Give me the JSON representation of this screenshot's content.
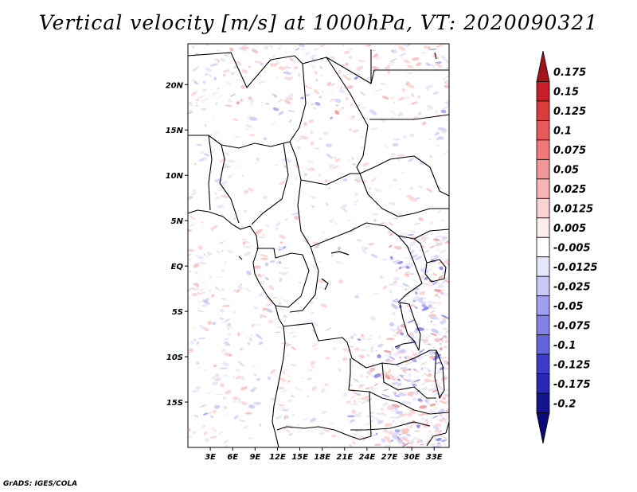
{
  "title": "Vertical velocity [m/s] at 1000hPa, VT: 2020090321",
  "credit": "GrADS: IGES/COLA",
  "map": {
    "lat_ticks": [
      "20N",
      "15N",
      "10N",
      "5N",
      "EQ",
      "5S",
      "10S",
      "15S"
    ],
    "lat_values": [
      20,
      15,
      10,
      5,
      0,
      -5,
      -10,
      -15
    ],
    "lon_ticks": [
      "3E",
      "6E",
      "9E",
      "12E",
      "15E",
      "18E",
      "21E",
      "24E",
      "27E",
      "30E",
      "33E"
    ],
    "lon_values": [
      3,
      6,
      9,
      12,
      15,
      18,
      21,
      24,
      27,
      30,
      33
    ],
    "lon_range": [
      0,
      35
    ],
    "lat_range": [
      -20,
      24.5
    ]
  },
  "colorbar": {
    "labels": [
      "0.175",
      "0.15",
      "0.125",
      "0.1",
      "0.075",
      "0.05",
      "0.025",
      "0.0125",
      "0.005",
      "-0.005",
      "-0.0125",
      "-0.025",
      "-0.05",
      "-0.075",
      "-0.1",
      "-0.125",
      "-0.175",
      "-0.2"
    ],
    "colors": [
      "#a0141e",
      "#c81e28",
      "#dc3c3c",
      "#e65a5a",
      "#f07878",
      "#f09696",
      "#f8b4b4",
      "#fad2d2",
      "#fdecec",
      "#ffffff",
      "#e6e6fa",
      "#c8c8f5",
      "#a0a0f0",
      "#8282e6",
      "#6464dc",
      "#3c3cc8",
      "#2828b4",
      "#14148c",
      "#0a0a78"
    ]
  }
}
